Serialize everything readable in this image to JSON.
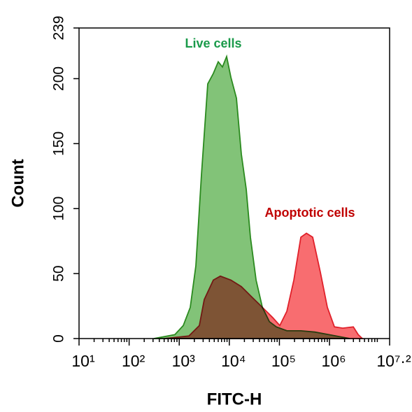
{
  "chart_data": {
    "type": "area",
    "xlabel": "FITC-H",
    "ylabel": "Count",
    "xscale": "log",
    "xlim": [
      10,
      15848931.92
    ],
    "xticks": [
      {
        "value": 10,
        "label": "10¹"
      },
      {
        "value": 100,
        "label": "10²"
      },
      {
        "value": 1000,
        "label": "10³"
      },
      {
        "value": 10000,
        "label": "10⁴"
      },
      {
        "value": 100000,
        "label": "10⁵"
      },
      {
        "value": 1000000,
        "label": "10⁶"
      },
      {
        "value": 15848931.92,
        "label": "10⁷·²"
      }
    ],
    "ylim": [
      0,
      239
    ],
    "yticks": [
      0,
      50,
      100,
      150,
      200,
      239
    ],
    "series": [
      {
        "name": "Live cells",
        "color": "#82c378",
        "line_color": "#2a8a1e",
        "label_color": "#1a9a4a",
        "x": [
          312,
          818,
          1205,
          1663,
          2150,
          2780,
          3715,
          4805,
          6015,
          7295,
          8850,
          10740,
          13880,
          17380,
          21770,
          26400,
          34200,
          45650,
          62950,
          86900,
          140700,
          267500,
          509400,
          968000,
          1841000,
          2541000
        ],
        "values": [
          0,
          3,
          10,
          24,
          56,
          126,
          196,
          204,
          213,
          209,
          217,
          201,
          185,
          142,
          115,
          78,
          45,
          24,
          13,
          9,
          6,
          6,
          5,
          3,
          1,
          0
        ]
      },
      {
        "name": "Apoptotic cells",
        "color": "#f86d70",
        "line_color": "#e0202a",
        "label_color": "#c00000",
        "x": [
          506,
          1560,
          2525,
          3162,
          4805,
          6625,
          10740,
          17380,
          28170,
          45650,
          73950,
          101900,
          140700,
          194000,
          267500,
          346000,
          462000,
          658000,
          907000,
          1253000,
          1841000,
          2985000,
          3741000,
          4530000
        ],
        "values": [
          0,
          2,
          10,
          30,
          45,
          48,
          45,
          40,
          32,
          24,
          16,
          10,
          21,
          45,
          78,
          81,
          78,
          51,
          24,
          9,
          8,
          9,
          3,
          0
        ]
      }
    ]
  }
}
